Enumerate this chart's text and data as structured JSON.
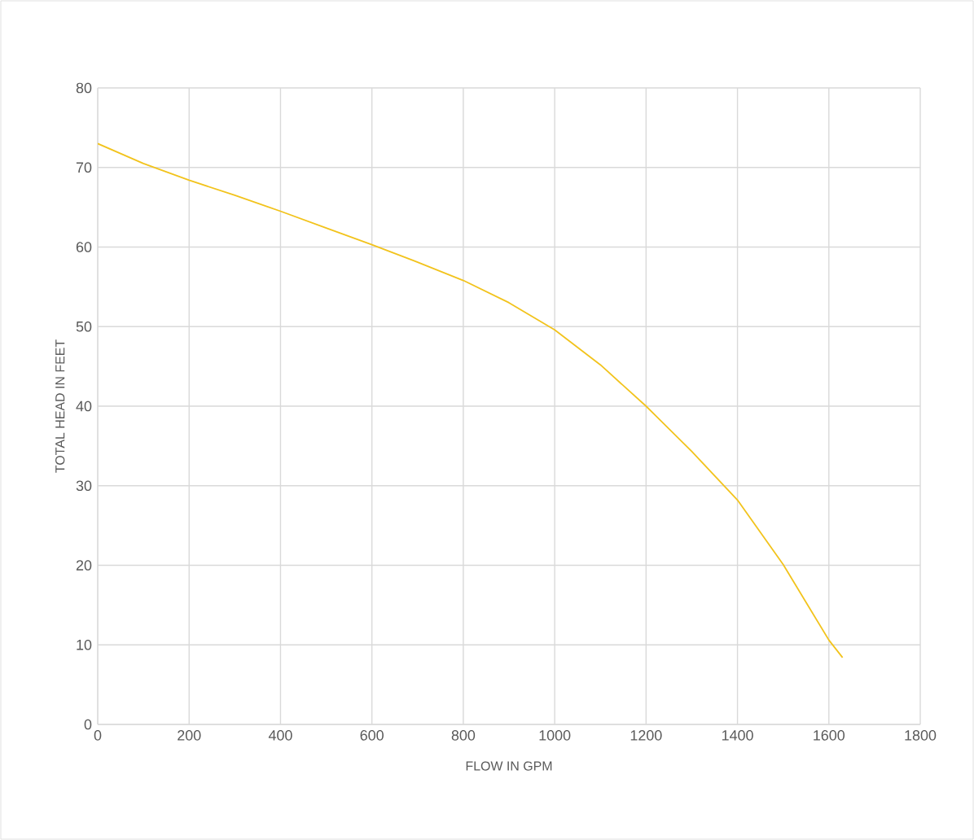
{
  "chart_data": {
    "type": "line",
    "xlabel": "FLOW IN GPM",
    "ylabel": "TOTAL HEAD IN FEET",
    "xlim": [
      0,
      1800
    ],
    "ylim": [
      0,
      80
    ],
    "xticks": [
      0,
      200,
      400,
      600,
      800,
      1000,
      1200,
      1400,
      1600,
      1800
    ],
    "yticks": [
      0,
      10,
      20,
      30,
      40,
      50,
      60,
      70,
      80
    ],
    "grid": true,
    "marker": "none",
    "line_style": "solid",
    "series": [
      {
        "color": "#f2c31c",
        "x": [
          0,
          100,
          200,
          300,
          400,
          500,
          600,
          700,
          800,
          900,
          1000,
          1100,
          1200,
          1300,
          1400,
          1500,
          1600,
          1630
        ],
        "values": [
          73.0,
          70.5,
          68.4,
          66.5,
          64.5,
          62.4,
          60.3,
          58.1,
          55.8,
          53.0,
          49.6,
          45.2,
          40.0,
          34.3,
          28.2,
          20.1,
          10.6,
          8.4
        ]
      }
    ]
  }
}
